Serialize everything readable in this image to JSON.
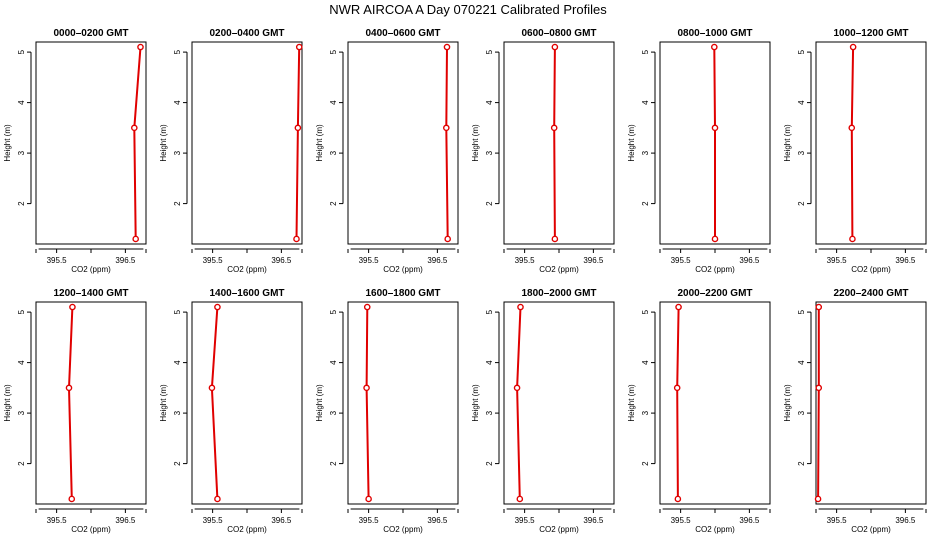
{
  "title": "NWR AIRCOA A  Day 070221  Calibrated Profiles",
  "colors": {
    "profile": "#e00000",
    "axis": "#000000"
  },
  "chart_data": {
    "type": "line",
    "xlabel": "CO2 (ppm)",
    "ylabel": "Height (m)",
    "xlim": [
      395.2,
      396.8
    ],
    "ylim": [
      1.2,
      5.2
    ],
    "xticks": [
      395.5,
      396.5
    ],
    "xtick_labels": [
      "395.5",
      "396.5"
    ],
    "yticks": [
      2,
      3,
      4,
      5
    ],
    "ytick_labels": [
      "2",
      "3",
      "4",
      "5"
    ],
    "heights": [
      1.3,
      3.5,
      5.1
    ],
    "panels": [
      {
        "title": "0000–0200 GMT",
        "co2": [
          396.65,
          396.63,
          396.72
        ]
      },
      {
        "title": "0200–0400 GMT",
        "co2": [
          396.72,
          396.74,
          396.76
        ]
      },
      {
        "title": "0400–0600 GMT",
        "co2": [
          396.65,
          396.63,
          396.64
        ]
      },
      {
        "title": "0600–0800 GMT",
        "co2": [
          395.94,
          395.93,
          395.94
        ]
      },
      {
        "title": "0800–1000 GMT",
        "co2": [
          396.0,
          396.0,
          395.99
        ]
      },
      {
        "title": "1000–1200 GMT",
        "co2": [
          395.73,
          395.72,
          395.74
        ]
      },
      {
        "title": "1200–1400 GMT",
        "co2": [
          395.72,
          395.68,
          395.73
        ]
      },
      {
        "title": "1400–1600 GMT",
        "co2": [
          395.57,
          395.49,
          395.57
        ]
      },
      {
        "title": "1600–1800 GMT",
        "co2": [
          395.5,
          395.47,
          395.48
        ]
      },
      {
        "title": "1800–2000 GMT",
        "co2": [
          395.43,
          395.39,
          395.44
        ]
      },
      {
        "title": "2000–2200 GMT",
        "co2": [
          395.46,
          395.45,
          395.47
        ]
      },
      {
        "title": "2200–2400 GMT",
        "co2": [
          395.23,
          395.24,
          395.24
        ]
      }
    ]
  }
}
